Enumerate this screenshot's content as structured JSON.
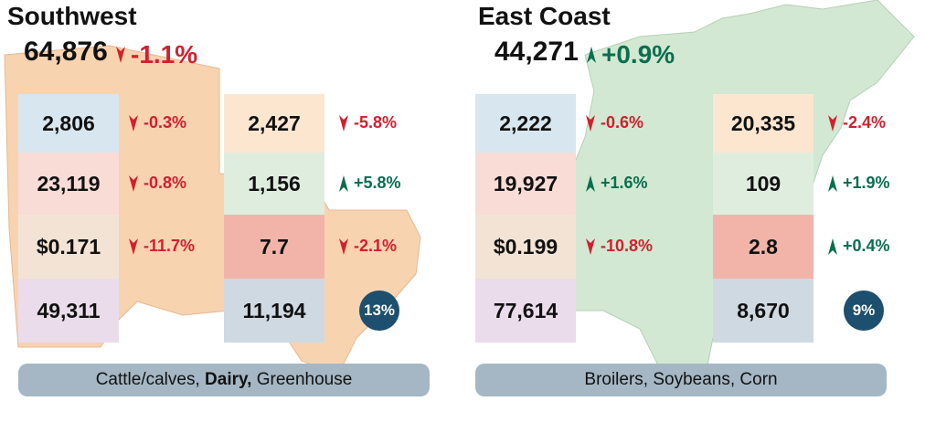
{
  "panels": [
    {
      "title": "Southwest",
      "total": "64,876",
      "change": "-1.1%",
      "trend": "down",
      "left": [
        {
          "value": "2,806",
          "change": "-0.3%",
          "trend": "down"
        },
        {
          "value": "23,119",
          "change": "-0.8%",
          "trend": "down"
        },
        {
          "value": "$0.171",
          "change": "-11.7%",
          "trend": "down"
        },
        {
          "value": "49,311"
        }
      ],
      "right": [
        {
          "value": "2,427",
          "change": "-5.8%",
          "trend": "down"
        },
        {
          "value": "1,156",
          "change": "+5.8%",
          "trend": "up"
        },
        {
          "value": "7.7",
          "change": "-2.1%",
          "trend": "down"
        },
        {
          "value": "11,194"
        }
      ],
      "badge": "13%",
      "footer": [
        {
          "text": "Cattle/calves, ",
          "bold": false
        },
        {
          "text": "Dairy,",
          "bold": true
        },
        {
          "text": " Greenhouse",
          "bold": false
        }
      ]
    },
    {
      "title": "East Coast",
      "total": "44,271",
      "change": "+0.9%",
      "trend": "up",
      "left": [
        {
          "value": "2,222",
          "change": "-0.6%",
          "trend": "down"
        },
        {
          "value": "19,927",
          "change": "+1.6%",
          "trend": "up"
        },
        {
          "value": "$0.199",
          "change": "-10.8%",
          "trend": "down"
        },
        {
          "value": "77,614"
        }
      ],
      "right": [
        {
          "value": "20,335",
          "change": "-2.4%",
          "trend": "down"
        },
        {
          "value": "109",
          "change": "+1.9%",
          "trend": "up"
        },
        {
          "value": "2.8",
          "change": "+0.4%",
          "trend": "up"
        },
        {
          "value": "8,670"
        }
      ],
      "badge": "9%",
      "footer": [
        {
          "text": "Broilers, Soybeans, Corn",
          "bold": false
        }
      ]
    }
  ]
}
